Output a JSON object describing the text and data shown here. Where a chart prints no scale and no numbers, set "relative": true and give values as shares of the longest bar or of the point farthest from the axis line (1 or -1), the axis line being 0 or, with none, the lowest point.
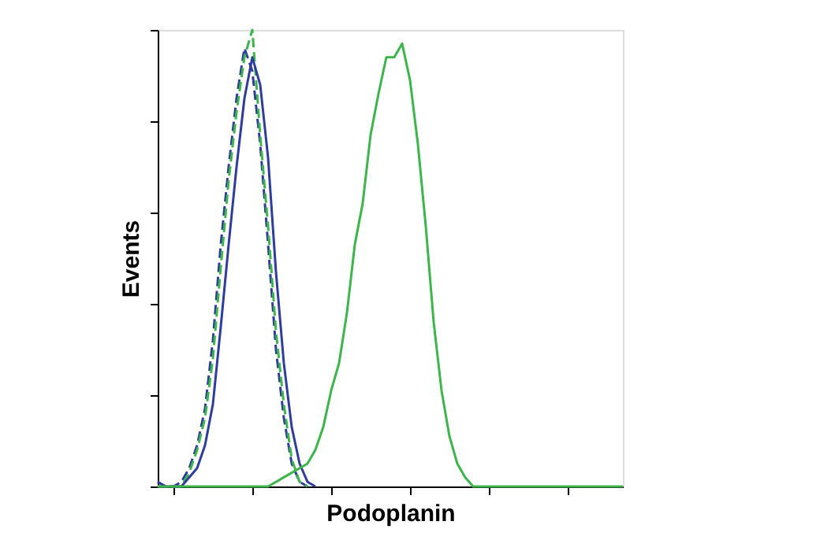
{
  "chart_data": {
    "type": "line",
    "xlabel": "Podoplanin",
    "ylabel": "Events",
    "relative": true,
    "grid": false,
    "marker": "none",
    "categories": [
      null,
      null,
      null,
      null,
      null,
      null,
      null,
      null,
      null,
      null,
      null,
      null,
      null,
      null,
      null,
      null,
      null,
      null,
      null,
      null,
      null,
      null,
      null,
      null,
      null,
      null,
      null,
      null,
      null,
      null,
      null,
      null,
      null,
      null,
      null,
      null,
      null,
      null,
      null,
      null,
      null,
      null,
      null,
      null,
      null,
      null,
      null,
      null,
      null,
      null,
      null,
      null,
      null,
      null,
      null,
      null,
      null,
      null,
      null,
      null
    ],
    "series": [
      {
        "color": "#2e3d9c",
        "line_style": "dashed",
        "values": [
          0.01,
          0,
          0,
          0.01,
          0.04,
          0.09,
          0.17,
          0.32,
          0.53,
          0.7,
          0.85,
          0.96,
          0.91,
          0.75,
          0.53,
          0.3,
          0.15,
          0.05,
          0.01,
          0,
          null,
          null,
          null,
          null,
          null,
          null,
          null,
          null,
          null,
          null,
          null,
          null,
          null,
          null,
          null,
          null,
          null,
          null,
          null,
          null,
          null,
          null,
          null,
          null,
          null,
          null,
          null,
          null,
          null,
          null,
          null,
          null,
          null,
          null,
          null,
          null,
          null,
          null,
          null,
          null
        ]
      },
      {
        "color": "#3cb54a",
        "line_style": "dashed",
        "values": [
          0,
          0,
          0,
          0,
          0.03,
          0.08,
          0.15,
          0.28,
          0.48,
          0.67,
          0.82,
          0.94,
          1,
          0.77,
          0.57,
          0.34,
          0.18,
          0.06,
          0.01,
          0,
          null,
          null,
          null,
          null,
          null,
          null,
          null,
          null,
          null,
          null,
          null,
          null,
          null,
          null,
          null,
          null,
          null,
          null,
          null,
          null,
          null,
          null,
          null,
          null,
          null,
          null,
          null,
          null,
          null,
          null,
          null,
          null,
          null,
          null,
          null,
          null,
          null,
          null,
          null,
          null
        ]
      },
      {
        "color": "#2e3d9c",
        "line_style": "solid",
        "values": [
          0.01,
          0,
          0,
          0,
          0.02,
          0.04,
          0.09,
          0.18,
          0.35,
          0.53,
          0.7,
          0.85,
          0.94,
          0.88,
          0.72,
          0.47,
          0.27,
          0.13,
          0.05,
          0.01,
          0,
          null,
          null,
          null,
          null,
          null,
          null,
          null,
          null,
          null,
          null,
          null,
          null,
          null,
          null,
          null,
          null,
          null,
          null,
          null,
          null,
          null,
          null,
          null,
          null,
          null,
          null,
          null,
          null,
          null,
          null,
          null,
          null,
          null,
          null,
          null,
          null,
          null,
          null,
          null
        ]
      },
      {
        "color": "#3cb54a",
        "line_style": "solid",
        "values": [
          0,
          0,
          0,
          0,
          0,
          0,
          0,
          0,
          0,
          0,
          0,
          0,
          0,
          0,
          0,
          0.01,
          0.02,
          0.03,
          0.04,
          0.05,
          0.08,
          0.13,
          0.21,
          0.27,
          0.38,
          0.53,
          0.62,
          0.77,
          0.86,
          0.94,
          0.94,
          0.97,
          0.89,
          0.75,
          0.57,
          0.36,
          0.21,
          0.11,
          0.05,
          0.02,
          0,
          0,
          0,
          0,
          0,
          0,
          0,
          0,
          0,
          0,
          0,
          0,
          0,
          0,
          0,
          0,
          0,
          0,
          0,
          0
        ]
      }
    ]
  }
}
